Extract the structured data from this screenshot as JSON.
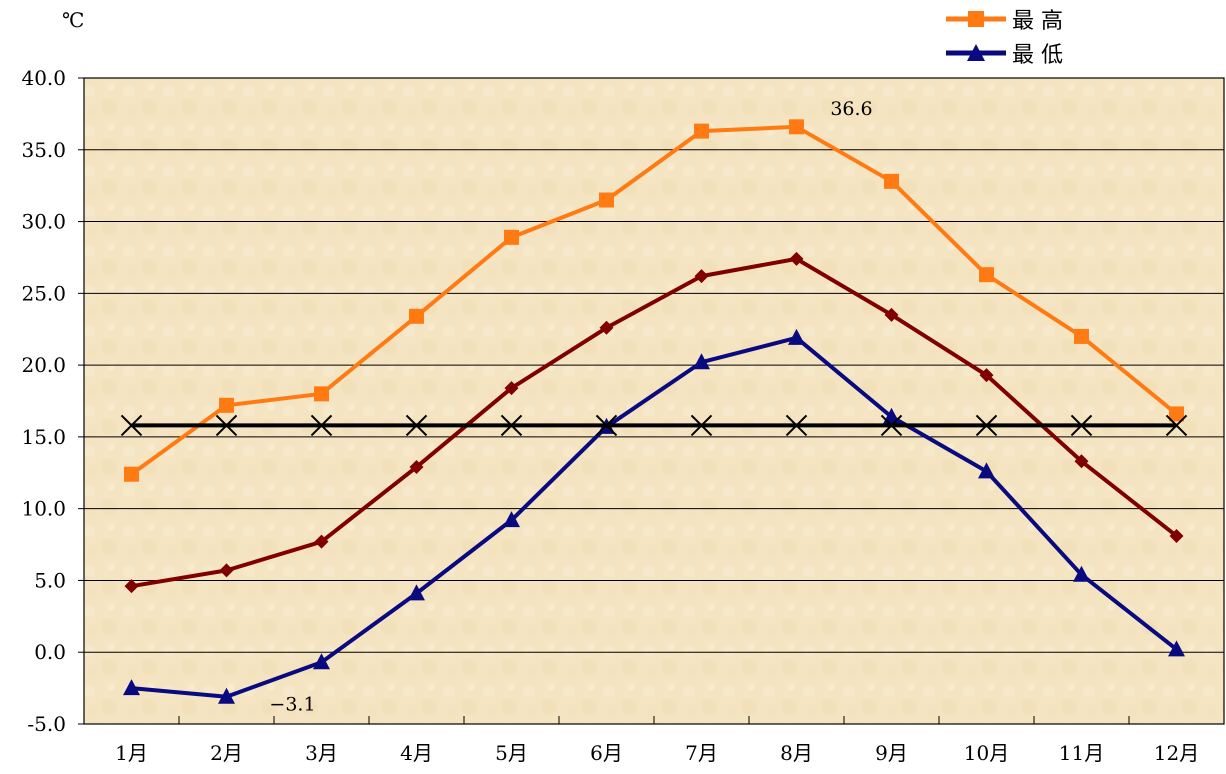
{
  "unit_label": "℃",
  "legend": [
    {
      "label": "最 高",
      "color": "#ff7a12",
      "marker": "square-icon"
    },
    {
      "label": "最 低",
      "color": "#0a0a80",
      "marker": "triangle-icon"
    }
  ],
  "chart_data": {
    "type": "line",
    "categories": [
      "1月",
      "2月",
      "3月",
      "4月",
      "5月",
      "6月",
      "7月",
      "8月",
      "9月",
      "10月",
      "11月",
      "12月"
    ],
    "ylim": [
      -5.0,
      40.0
    ],
    "yticks": [
      "40.0",
      "35.0",
      "30.0",
      "25.0",
      "20.0",
      "15.0",
      "10.0",
      "5.0",
      "0.0",
      "-5.0"
    ],
    "grid": true,
    "legend_position": "top-right",
    "series": [
      {
        "name": "最 高",
        "color": "#ff7a12",
        "marker": "square",
        "values": [
          12.4,
          17.2,
          18.0,
          23.4,
          28.9,
          31.5,
          36.3,
          36.6,
          32.8,
          26.3,
          22.0,
          16.6
        ]
      },
      {
        "color": "#800000",
        "marker": "diamond",
        "values": [
          4.6,
          5.7,
          7.7,
          12.9,
          18.4,
          22.6,
          26.2,
          27.4,
          23.5,
          19.3,
          13.3,
          8.1
        ]
      },
      {
        "name": "最 低",
        "color": "#0a0a80",
        "marker": "triangle",
        "values": [
          -2.5,
          -3.1,
          -0.7,
          4.1,
          9.2,
          15.7,
          20.2,
          21.9,
          16.4,
          12.6,
          5.4,
          0.2
        ]
      },
      {
        "color": "#000000",
        "marker": "x",
        "values": [
          15.8,
          15.8,
          15.8,
          15.8,
          15.8,
          15.8,
          15.8,
          15.8,
          15.8,
          15.8,
          15.8,
          15.8
        ]
      }
    ],
    "annotations": [
      {
        "text": "36.6",
        "category": "8月",
        "value": 36.6
      },
      {
        "text": "−3.1",
        "category": "2月",
        "value": -3.1
      }
    ]
  }
}
